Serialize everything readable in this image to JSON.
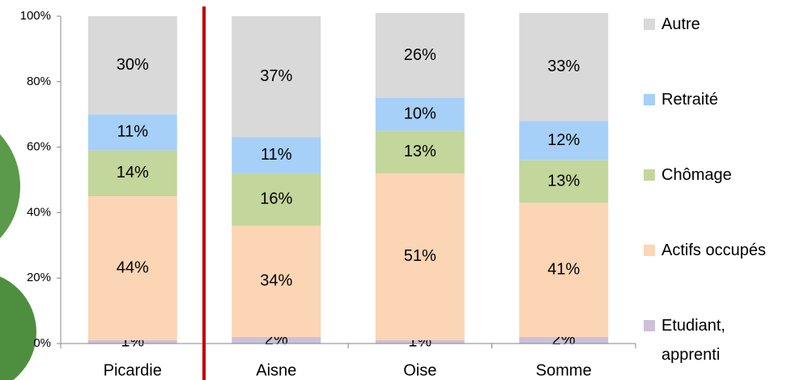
{
  "chart_data": {
    "type": "stacked_bar",
    "categories": [
      "Picardie",
      "Aisne",
      "Oise",
      "Somme"
    ],
    "series": [
      {
        "name": "Etudiant, apprenti",
        "color": "#ccc0da",
        "values": [
          1,
          2,
          1,
          2
        ],
        "value_labels": [
          "1%",
          "2%",
          "1%",
          "2%"
        ]
      },
      {
        "name": "Actifs occupés",
        "color": "#fcd5b5",
        "values": [
          44,
          34,
          51,
          41
        ],
        "value_labels": [
          "44%",
          "34%",
          "51%",
          "41%"
        ]
      },
      {
        "name": "Chômage",
        "color": "#c3d69b",
        "values": [
          14,
          16,
          13,
          13
        ],
        "value_labels": [
          "14%",
          "16%",
          "13%",
          "13%"
        ]
      },
      {
        "name": "Retraité",
        "color": "#a6d0f8",
        "values": [
          11,
          11,
          10,
          12
        ],
        "value_labels": [
          "11%",
          "11%",
          "10%",
          "12%"
        ]
      },
      {
        "name": "Autre",
        "color": "#d9d9d9",
        "values": [
          30,
          37,
          26,
          33
        ],
        "value_labels": [
          "30%",
          "37%",
          "26%",
          "33%"
        ]
      }
    ],
    "ylim": [
      0,
      100
    ],
    "yticks": [
      {
        "value": 0,
        "label": "0%"
      },
      {
        "value": 20,
        "label": "20%"
      },
      {
        "value": 40,
        "label": "40%"
      },
      {
        "value": 60,
        "label": "60%"
      },
      {
        "value": 80,
        "label": "80%"
      },
      {
        "value": 100,
        "label": "100%"
      }
    ],
    "grid": false,
    "legend": "right"
  }
}
